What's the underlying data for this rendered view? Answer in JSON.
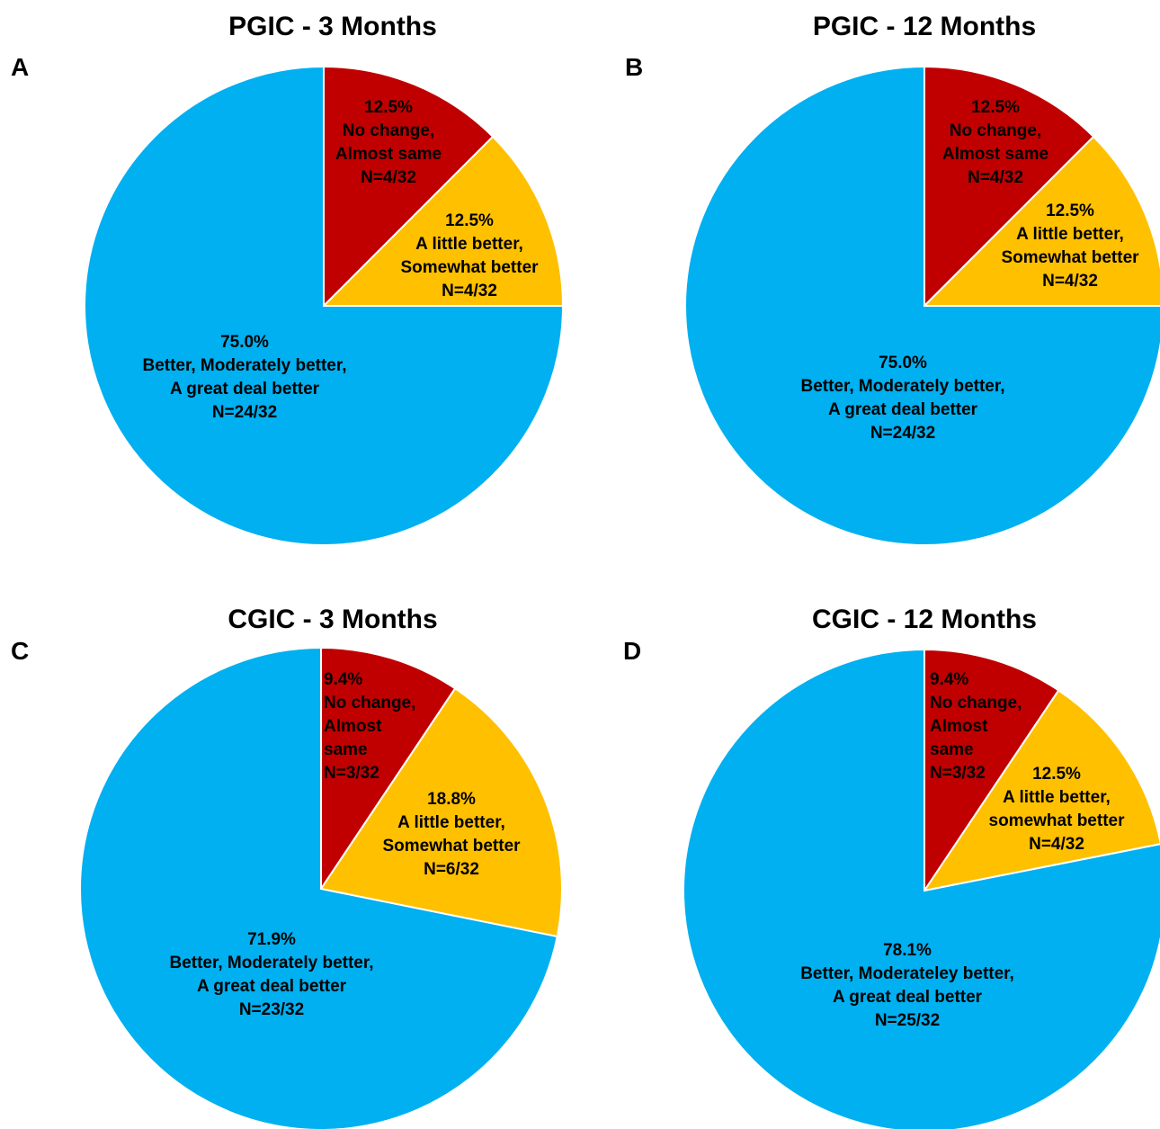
{
  "chart_data": [
    {
      "panel": "A",
      "type": "pie",
      "title": "PGIC - 3 Months",
      "slices": [
        {
          "lines": [
            "12.5%",
            "No change,",
            "Almost same",
            "N=4/32"
          ],
          "value": 12.5,
          "color": "#C00000"
        },
        {
          "lines": [
            "12.5%",
            "A little better,",
            "Somewhat better",
            "N=4/32"
          ],
          "value": 12.5,
          "color": "#FFC000"
        },
        {
          "lines": [
            "75.0%",
            "Better, Moderately better,",
            "A great deal better",
            "N=24/32"
          ],
          "value": 75.0,
          "color": "#00B0F0"
        }
      ]
    },
    {
      "panel": "B",
      "type": "pie",
      "title": "PGIC - 12 Months",
      "slices": [
        {
          "lines": [
            "12.5%",
            "No change,",
            "Almost same",
            "N=4/32"
          ],
          "value": 12.5,
          "color": "#C00000"
        },
        {
          "lines": [
            "12.5%",
            "A little better,",
            "Somewhat better",
            "N=4/32"
          ],
          "value": 12.5,
          "color": "#FFC000"
        },
        {
          "lines": [
            "75.0%",
            "Better, Moderately better,",
            "A great deal better",
            "N=24/32"
          ],
          "value": 75.0,
          "color": "#00B0F0"
        }
      ]
    },
    {
      "panel": "C",
      "type": "pie",
      "title": "CGIC - 3 Months",
      "slices": [
        {
          "lines": [
            "9.4%",
            "No change,",
            "Almost",
            "same",
            "N=3/32"
          ],
          "value": 9.4,
          "color": "#C00000"
        },
        {
          "lines": [
            "18.8%",
            "A little better,",
            "Somewhat better",
            "N=6/32"
          ],
          "value": 18.8,
          "color": "#FFC000"
        },
        {
          "lines": [
            "71.9%",
            "Better, Moderately better,",
            "A great deal better",
            "N=23/32"
          ],
          "value": 71.9,
          "color": "#00B0F0"
        }
      ]
    },
    {
      "panel": "D",
      "type": "pie",
      "title": "CGIC - 12 Months",
      "slices": [
        {
          "lines": [
            "9.4%",
            "No change,",
            "Almost",
            "same",
            "N=3/32"
          ],
          "value": 9.4,
          "color": "#C00000"
        },
        {
          "lines": [
            "12.5%",
            "A little better,",
            "somewhat better",
            "N=4/32"
          ],
          "value": 12.5,
          "color": "#FFC000"
        },
        {
          "lines": [
            "78.1%",
            "Better, Moderateley better,",
            "A great deal better",
            "N=25/32"
          ],
          "value": 78.1,
          "color": "#00B0F0"
        }
      ]
    }
  ]
}
